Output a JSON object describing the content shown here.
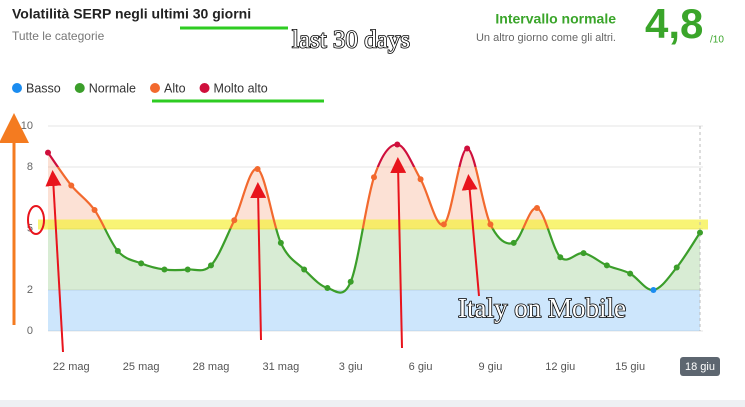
{
  "header": {
    "title": "Volatilità SERP negli ultimi 30 giorni",
    "subtitle": "Tutte le categorie",
    "status": "Intervallo normale",
    "status_note": "Un altro giorno come gli altri.",
    "score": "4,8",
    "score_max": "/10"
  },
  "annotations": {
    "period": "last 30 days",
    "market": "Italy on Mobile"
  },
  "chart_data": {
    "type": "line",
    "legend": [
      {
        "name": "Basso",
        "color": "#1a8cf0"
      },
      {
        "name": "Normale",
        "color": "#3b9e2a"
      },
      {
        "name": "Alto",
        "color": "#f2692e"
      },
      {
        "name": "Molto alto",
        "color": "#cf0f3c"
      }
    ],
    "categories": [
      null,
      "22 mag",
      null,
      null,
      "25 mag",
      null,
      null,
      "28 mag",
      null,
      null,
      "31 mag",
      null,
      null,
      "3 giu",
      null,
      null,
      "6 giu",
      null,
      null,
      "9 giu",
      null,
      null,
      "12 giu",
      null,
      null,
      "15 giu",
      null,
      null,
      "18 giu"
    ],
    "values": [
      8.7,
      7.1,
      5.9,
      3.9,
      3.3,
      3.0,
      3.0,
      3.2,
      5.4,
      7.9,
      4.3,
      3.0,
      2.1,
      2.4,
      7.5,
      9.1,
      7.4,
      5.2,
      8.9,
      5.2,
      4.3,
      6.0,
      3.6,
      3.8,
      3.2,
      2.8,
      2.0,
      3.1,
      4.8
    ],
    "ylim": [
      0,
      10
    ],
    "yticks": [
      0,
      2,
      5,
      8,
      10
    ],
    "grid": true
  }
}
